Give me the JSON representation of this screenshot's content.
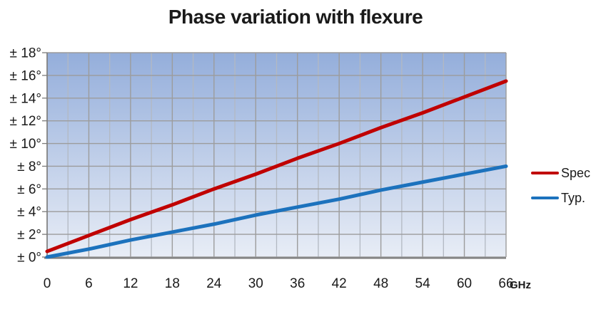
{
  "title": "Phase variation with flexure",
  "chart_data": {
    "type": "line",
    "title": "Phase variation with flexure",
    "x": [
      0,
      6,
      12,
      18,
      24,
      30,
      36,
      42,
      48,
      54,
      60,
      66
    ],
    "x_unit": "GHz",
    "xlim": [
      0,
      66
    ],
    "x_major_step": 6,
    "x_minor_step": 3,
    "ylim": [
      0,
      18
    ],
    "y_ticks": [
      0,
      2,
      4,
      6,
      8,
      10,
      12,
      14,
      16,
      18
    ],
    "y_tick_labels": [
      "± 0°",
      "± 2°",
      "± 4°",
      "± 6°",
      "± 8°",
      "± 10°",
      "± 12°",
      "± 14°",
      "± 16°",
      "± 18°"
    ],
    "grid": true,
    "legend_position": "right",
    "series": [
      {
        "name": "Spec",
        "color": "#c00000",
        "values": [
          0.5,
          1.9,
          3.3,
          4.6,
          6.0,
          7.3,
          8.7,
          10.0,
          11.4,
          12.7,
          14.1,
          15.5
        ]
      },
      {
        "name": "Typ.",
        "color": "#1c72bd",
        "values": [
          0.0,
          0.7,
          1.5,
          2.2,
          2.9,
          3.7,
          4.4,
          5.1,
          5.9,
          6.6,
          7.3,
          8.0
        ]
      }
    ],
    "plot_background_gradient_top": "#94aedb",
    "plot_background_gradient_bottom": "#e8edf6",
    "gridline_color_major": "#9c9c9c",
    "gridline_color_minor": "#b3b9c2",
    "axis_color": "#7a7a7a",
    "tick_label_color": "#1a1a1a"
  }
}
